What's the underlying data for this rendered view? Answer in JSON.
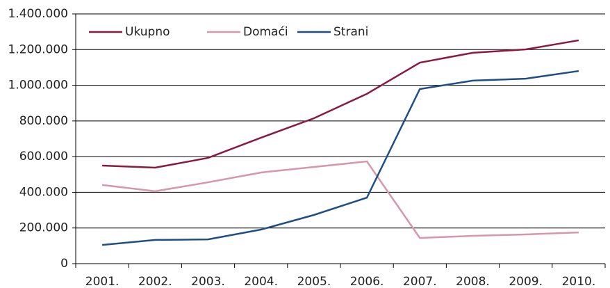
{
  "chart_data": {
    "type": "line",
    "categories": [
      "2001.",
      "2002.",
      "2003.",
      "2004.",
      "2005.",
      "2006.",
      "2007.",
      "2008.",
      "2009.",
      "2010."
    ],
    "series": [
      {
        "name": "Ukupno",
        "color": "#8b1a3e",
        "values": [
          550000,
          538000,
          593000,
          706000,
          815000,
          952000,
          1127000,
          1182000,
          1201000,
          1252000
        ]
      },
      {
        "name": "Domaći",
        "color": "#d796a9",
        "values": [
          441000,
          406000,
          456000,
          511000,
          542000,
          573000,
          144000,
          156000,
          164000,
          175000
        ]
      },
      {
        "name": "Strani",
        "color": "#1f4e86",
        "values": [
          105000,
          133000,
          136000,
          191000,
          273000,
          370000,
          979000,
          1026000,
          1037000,
          1080000
        ]
      }
    ],
    "ylim": [
      0,
      1400000
    ],
    "yticks": [
      0,
      {
        "value": 200000,
        "label": "200.000"
      },
      {
        "value": 400000,
        "label": "400.000"
      },
      {
        "value": 600000,
        "label": "600.000"
      },
      {
        "value": 800000,
        "label": "800.000"
      },
      {
        "value": 1000000,
        "label": "1.000.000"
      },
      {
        "value": 1200000,
        "label": "1.200.000"
      },
      {
        "value": 1400000,
        "label": "1.400.000"
      }
    ],
    "grid": true,
    "legend": "top-left"
  }
}
